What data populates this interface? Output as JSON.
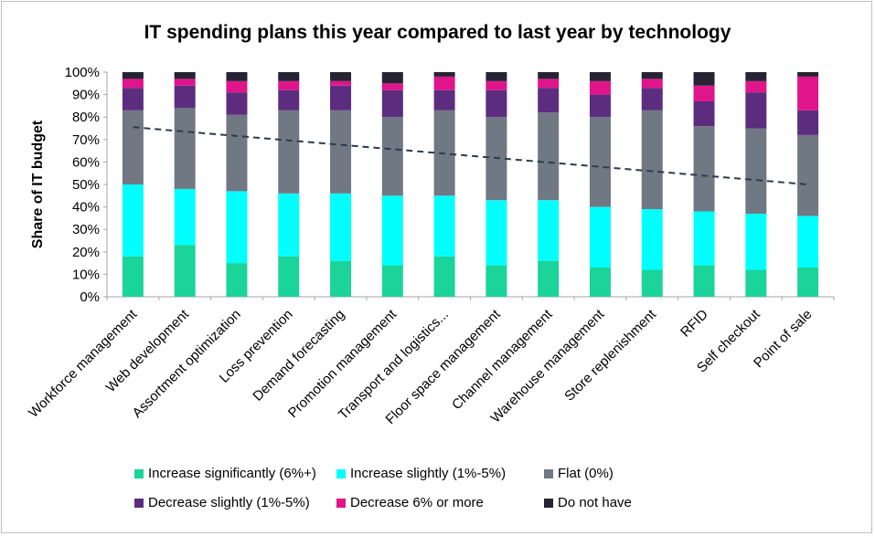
{
  "chart_data": {
    "type": "bar",
    "stacked": true,
    "title": "IT spending plans this year compared to last year by technology",
    "xlabel": "",
    "ylabel": "Share of IT budget",
    "ylim": [
      0,
      100
    ],
    "yticks": [
      "0%",
      "10%",
      "20%",
      "30%",
      "40%",
      "50%",
      "60%",
      "70%",
      "80%",
      "90%",
      "100%"
    ],
    "categories": [
      "Workforce management",
      "Web development",
      "Assortment optimization",
      "Loss prevention",
      "Demand forecasting",
      "Promotion management",
      "Transport and logistics...",
      "Floor space management",
      "Channel management",
      "Warehouse management",
      "Store replenishment",
      "RFID",
      "Self checkout",
      "Point of sale"
    ],
    "series": [
      {
        "name": "Increase significantly (6%+)",
        "color": "#1bd49a",
        "values": [
          18,
          23,
          15,
          18,
          16,
          14,
          18,
          14,
          16,
          13,
          12,
          14,
          12,
          13
        ]
      },
      {
        "name": "Increase slightly (1%-5%)",
        "color": "#00ffff",
        "values": [
          32,
          25,
          32,
          28,
          30,
          31,
          27,
          29,
          27,
          27,
          27,
          24,
          25,
          23
        ]
      },
      {
        "name": "Flat (0%)",
        "color": "#707883",
        "values": [
          33,
          36,
          34,
          37,
          37,
          35,
          38,
          37,
          39,
          40,
          44,
          38,
          38,
          36
        ]
      },
      {
        "name": "Decrease slightly (1%-5%)",
        "color": "#5c2d7e",
        "values": [
          10,
          10,
          10,
          9,
          11,
          12,
          9,
          12,
          11,
          10,
          10,
          11,
          16,
          11
        ]
      },
      {
        "name": "Decrease 6% or more",
        "color": "#e0148b",
        "values": [
          4,
          3,
          5,
          4,
          2,
          3,
          6,
          4,
          4,
          6,
          4,
          7,
          5,
          15
        ]
      },
      {
        "name": "Do not have",
        "color": "#262432",
        "values": [
          3,
          3,
          4,
          4,
          4,
          5,
          2,
          4,
          3,
          4,
          3,
          6,
          4,
          2
        ]
      }
    ],
    "trendline": {
      "style": "dashed",
      "color": "#2f3a4a",
      "start_value": 75.5,
      "end_value": 50
    },
    "grid": false,
    "legend": "bottom"
  }
}
